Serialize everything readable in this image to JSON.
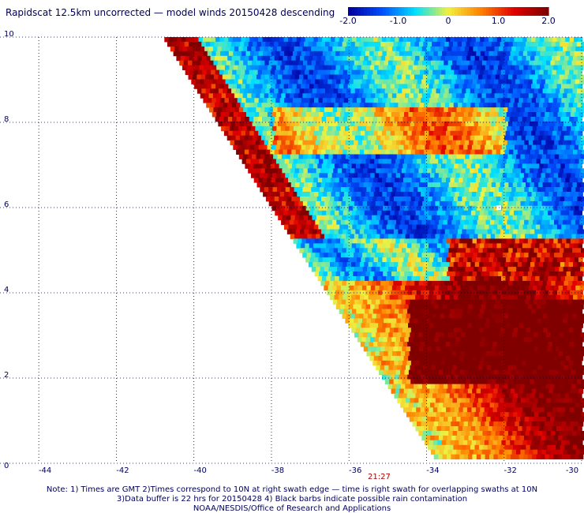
{
  "title": "Rapidscat 12.5km uncorrected — model winds 20150428 descending",
  "colorbar": {
    "ticks": [
      "-2.0",
      "-1.0",
      "0",
      "1.0",
      "2.0"
    ],
    "range": [
      -2.0,
      2.0
    ],
    "colors": [
      "#0000a0",
      "#0050ff",
      "#00e0ff",
      "#f0f040",
      "#ff8000",
      "#e00000",
      "#800000"
    ]
  },
  "axes": {
    "x_ticks": [
      "-44",
      "-42",
      "-40",
      "-38",
      "-36",
      "-34",
      "-32",
      "-30"
    ],
    "y_ticks": [
      "0",
      "2",
      "4",
      "6",
      "8",
      "10"
    ],
    "lon_range": [
      -45,
      -30
    ],
    "lat_range": [
      0,
      10
    ],
    "grid": "dotted"
  },
  "swath_time": "21:27",
  "notes": [
    "Note: 1) Times are GMT 2)Times correspond to 10N at right swath edge — time is right swath for overlapping swaths at 10N",
    "3)Data buffer is 22 hrs for 20150428 4) Black barbs indicate possible rain contamination",
    "NOAA/NESDIS/Office of Research and Applications"
  ],
  "swath": {
    "left_edge": [
      [
        -40.8,
        10
      ],
      [
        -38,
        6
      ],
      [
        -33.7,
        0
      ]
    ],
    "field_pattern": "blue-cyan wind differences in north, red/dark-red positive differences in south-east"
  }
}
